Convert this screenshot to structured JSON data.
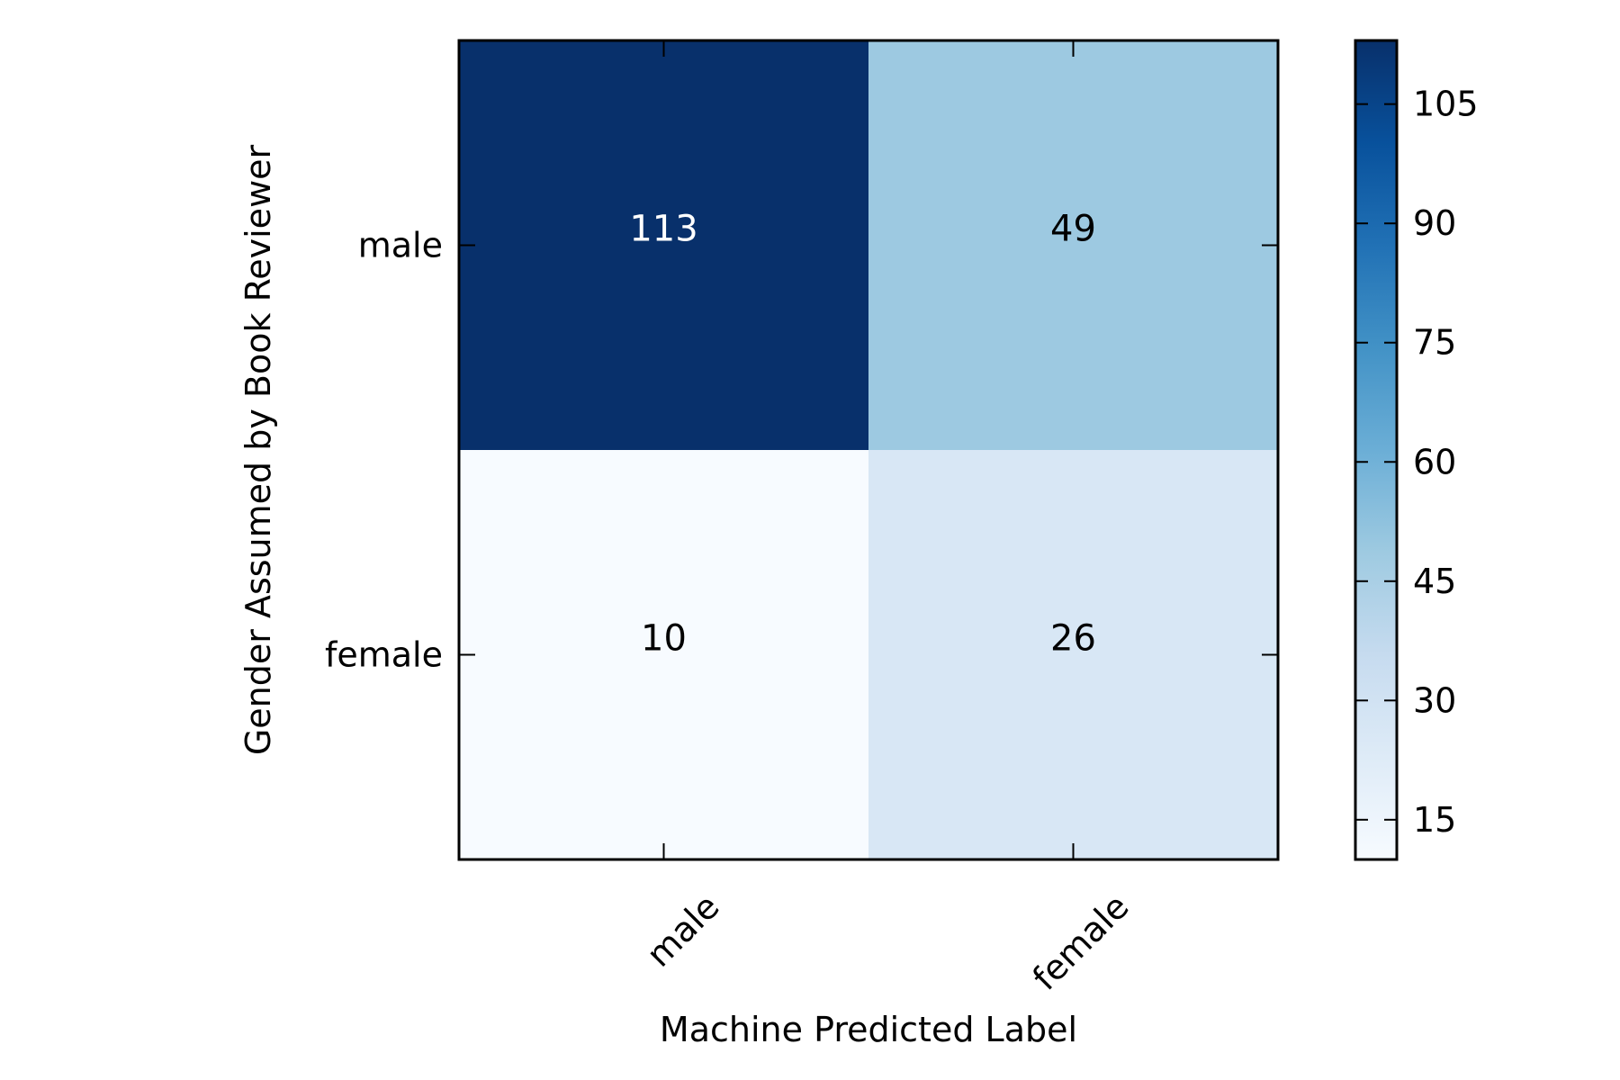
{
  "chart_data": {
    "type": "heatmap",
    "title": "",
    "xlabel": "Machine Predicted Label",
    "ylabel": "Gender Assumed by Book Reviewer",
    "x_categories": [
      "male",
      "female"
    ],
    "y_categories": [
      "male",
      "female"
    ],
    "values": [
      [
        113,
        49
      ],
      [
        10,
        26
      ]
    ],
    "colormap": "Blues",
    "value_range": [
      10,
      113
    ],
    "colorbar": {
      "ticks": [
        15,
        30,
        45,
        60,
        75,
        90,
        105
      ],
      "tick_labels": [
        "15",
        "30",
        "45",
        "60",
        "75",
        "90",
        "105"
      ],
      "position": "right"
    },
    "x_tick_rotation_deg": 45,
    "grid": false,
    "colors": {
      "light_text": "#ffffff",
      "dark_text": "#000000",
      "frame": "#000000"
    }
  }
}
